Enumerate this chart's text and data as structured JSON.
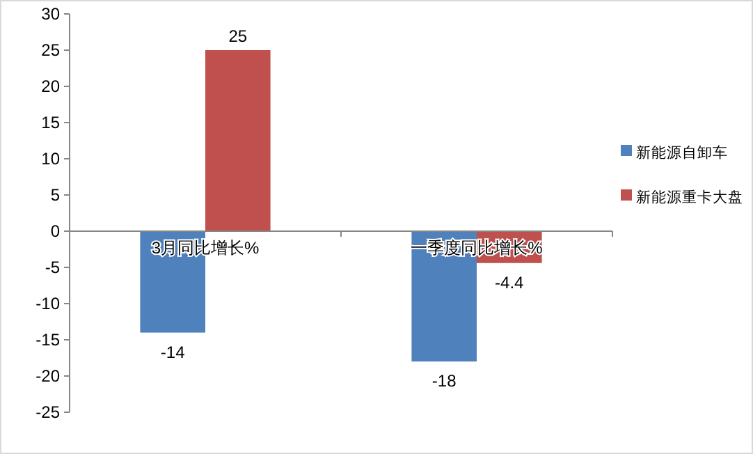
{
  "chart_data": {
    "type": "bar",
    "categories": [
      "3月同比增长%",
      "一季度同比增长%"
    ],
    "series": [
      {
        "name": "新能源自卸车",
        "color": "#4f81bd",
        "values": [
          -14,
          -18
        ]
      },
      {
        "name": "新能源重卡大盘",
        "color": "#c0504d",
        "values": [
          25,
          -4.4
        ]
      }
    ],
    "ylim": [
      -25,
      30
    ],
    "yticks": [
      -25,
      -20,
      -15,
      -10,
      -5,
      0,
      5,
      10,
      15,
      20,
      25,
      30
    ],
    "grid": false,
    "legend": "right",
    "data_labels": true
  }
}
